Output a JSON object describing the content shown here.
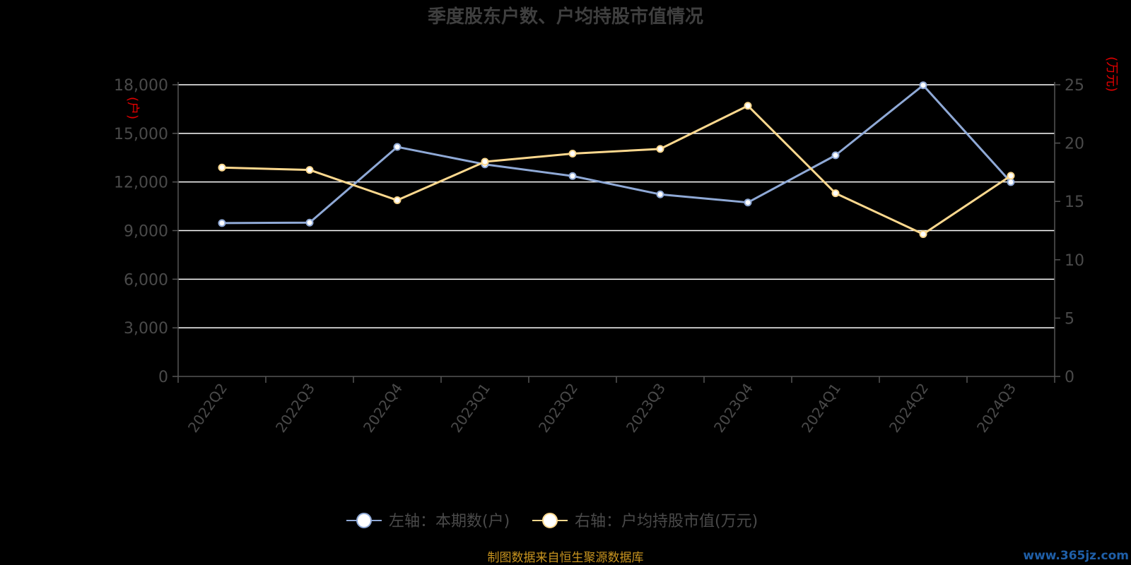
{
  "chart_data": {
    "type": "line",
    "title": "季度股东户数、户均持股市值情况",
    "categories": [
      "2022Q2",
      "2022Q3",
      "2022Q4",
      "2023Q1",
      "2023Q2",
      "2023Q3",
      "2023Q4",
      "2024Q1",
      "2024Q2",
      "2024Q3"
    ],
    "left_axis": {
      "unit_label": "(户)",
      "ylim": [
        0,
        18000
      ],
      "ticks": [
        "0",
        "3,000",
        "6,000",
        "9,000",
        "12,000",
        "15,000",
        "18,000"
      ],
      "tick_values": [
        0,
        3000,
        6000,
        9000,
        12000,
        15000,
        18000
      ]
    },
    "right_axis": {
      "unit_label": "(万元)",
      "ylim": [
        0,
        25
      ],
      "ticks": [
        "0",
        "5",
        "10",
        "15",
        "20",
        "25"
      ],
      "tick_values": [
        0,
        5,
        10,
        15,
        20,
        25
      ]
    },
    "series": [
      {
        "name": "左轴：本期数(户)",
        "axis": "left",
        "color": "#8fa9d6",
        "values": [
          9464,
          9490,
          14163,
          13088,
          12367,
          11235,
          10735,
          13647,
          17970,
          11989
        ]
      },
      {
        "name": "右轴：户均持股市值(万元)",
        "axis": "right",
        "color": "#fcd88e",
        "values": [
          17.9,
          17.7,
          15.1,
          18.4,
          19.1,
          19.5,
          23.2,
          15.7,
          12.2,
          17.2
        ]
      }
    ],
    "grid": true,
    "legend_position": "bottom"
  },
  "footer": {
    "source": "制图数据来自恒生聚源数据库",
    "watermark": "www.365jz.com"
  }
}
